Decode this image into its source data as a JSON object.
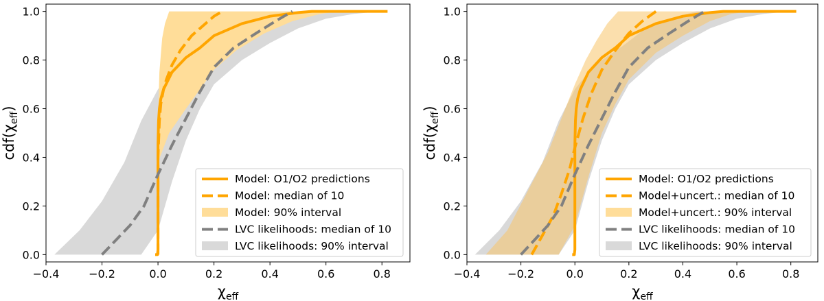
{
  "chart_data": [
    {
      "type": "line",
      "xlabel": "χ",
      "xlabel_sub": "eff",
      "ylabel": "cdf(χ",
      "ylabel_sub": "eff",
      "ylabel_close": ")",
      "xlim": [
        -0.4,
        0.9
      ],
      "ylim": [
        -0.03,
        1.03
      ],
      "xticks": [
        -0.4,
        -0.2,
        0.0,
        0.2,
        0.4,
        0.6,
        0.8
      ],
      "xtick_labels": [
        "−0.4",
        "−0.2",
        "0.0",
        "0.2",
        "0.4",
        "0.6",
        "0.8"
      ],
      "yticks": [
        0.0,
        0.2,
        0.4,
        0.6,
        0.8,
        1.0
      ],
      "ytick_labels": [
        "0.0",
        "0.2",
        "0.4",
        "0.6",
        "0.8",
        "1.0"
      ],
      "grid": false,
      "legend_position": "lower-right",
      "colors": {
        "model": "#ffa500",
        "model_band": "#ffdd99",
        "lvc": "#808080",
        "lvc_band": "#d9d9d9"
      },
      "bands": [
        {
          "name": "LVC likelihoods: 90% interval",
          "color": "#d9d9d9",
          "alpha": 1,
          "lower": [
            [
              -0.06,
              0.0
            ],
            [
              0.0,
              0.1
            ],
            [
              0.05,
              0.3
            ],
            [
              0.1,
              0.47
            ],
            [
              0.15,
              0.6
            ],
            [
              0.2,
              0.7
            ],
            [
              0.3,
              0.8
            ],
            [
              0.4,
              0.87
            ],
            [
              0.5,
              0.93
            ],
            [
              0.6,
              0.97
            ],
            [
              0.7,
              0.99
            ],
            [
              0.8,
              1.0
            ]
          ],
          "upper": [
            [
              -0.37,
              0.0
            ],
            [
              -0.28,
              0.1
            ],
            [
              -0.2,
              0.22
            ],
            [
              -0.12,
              0.38
            ],
            [
              -0.06,
              0.55
            ],
            [
              0.0,
              0.68
            ],
            [
              0.05,
              0.75
            ],
            [
              0.1,
              0.8
            ],
            [
              0.18,
              0.86
            ],
            [
              0.25,
              0.92
            ],
            [
              0.35,
              0.97
            ],
            [
              0.45,
              1.0
            ]
          ]
        },
        {
          "name": "Model: 90% interval",
          "color": "#ffdd99",
          "alpha": 1,
          "lower": [
            [
              0.0,
              0.0
            ],
            [
              0.0,
              0.38
            ],
            [
              0.04,
              0.5
            ],
            [
              0.1,
              0.6
            ],
            [
              0.15,
              0.68
            ],
            [
              0.2,
              0.76
            ],
            [
              0.28,
              0.84
            ],
            [
              0.38,
              0.91
            ],
            [
              0.48,
              0.96
            ],
            [
              0.58,
              0.99
            ],
            [
              0.65,
              1.0
            ]
          ],
          "upper": [
            [
              0.0,
              0.0
            ],
            [
              0.0,
              0.55
            ],
            [
              0.005,
              0.75
            ],
            [
              0.015,
              0.89
            ],
            [
              0.025,
              0.95
            ],
            [
              0.04,
              1.0
            ]
          ]
        }
      ],
      "series": [
        {
          "name": "Model: O1/O2 predictions",
          "color": "#ffa500",
          "style": "solid",
          "x": [
            -0.01,
            -0.002,
            0.0,
            0.0,
            0.002,
            0.005,
            0.01,
            0.02,
            0.05,
            0.1,
            0.15,
            0.2,
            0.3,
            0.4,
            0.5,
            0.55,
            0.6,
            0.82
          ],
          "y": [
            0.0,
            0.0,
            0.02,
            0.45,
            0.55,
            0.6,
            0.64,
            0.68,
            0.75,
            0.81,
            0.85,
            0.9,
            0.95,
            0.98,
            0.995,
            1.0,
            1.0,
            1.0
          ]
        },
        {
          "name": "Model: median of 10",
          "color": "#ffa500",
          "style": "dashed",
          "x": [
            0.0,
            0.0,
            0.005,
            0.01,
            0.02,
            0.03,
            0.05,
            0.08,
            0.12,
            0.16,
            0.2,
            0.23
          ],
          "y": [
            0.0,
            0.4,
            0.55,
            0.62,
            0.68,
            0.72,
            0.78,
            0.84,
            0.9,
            0.94,
            0.98,
            1.0
          ]
        },
        {
          "name": "LVC likelihoods: median of 10",
          "color": "#808080",
          "style": "dashed",
          "x": [
            -0.2,
            -0.15,
            -0.1,
            -0.05,
            0.0,
            0.05,
            0.1,
            0.15,
            0.2,
            0.27,
            0.35,
            0.42,
            0.48
          ],
          "y": [
            0.0,
            0.06,
            0.12,
            0.2,
            0.33,
            0.45,
            0.56,
            0.67,
            0.77,
            0.85,
            0.91,
            0.96,
            1.0
          ]
        }
      ],
      "legend": [
        {
          "label": "Model: O1/O2 predictions",
          "kind": "solid",
          "color": "#ffa500"
        },
        {
          "label": "Model: median of 10",
          "kind": "dashed",
          "color": "#ffa500"
        },
        {
          "label": "Model: 90% interval",
          "kind": "patch",
          "color": "#ffdd99"
        },
        {
          "label": "LVC likelihoods: median of 10",
          "kind": "dashed",
          "color": "#808080"
        },
        {
          "label": "LVC likelihoods: 90% interval",
          "kind": "patch",
          "color": "#d9d9d9"
        }
      ]
    },
    {
      "type": "line",
      "xlabel": "χ",
      "xlabel_sub": "eff",
      "ylabel": "cdf(χ",
      "ylabel_sub": "eff",
      "ylabel_close": ")",
      "xlim": [
        -0.4,
        0.9
      ],
      "ylim": [
        -0.03,
        1.03
      ],
      "xticks": [
        -0.4,
        -0.2,
        0.0,
        0.2,
        0.4,
        0.6,
        0.8
      ],
      "xtick_labels": [
        "−0.4",
        "−0.2",
        "0.0",
        "0.2",
        "0.4",
        "0.6",
        "0.8"
      ],
      "yticks": [
        0.0,
        0.2,
        0.4,
        0.6,
        0.8,
        1.0
      ],
      "ytick_labels": [
        "0.0",
        "0.2",
        "0.4",
        "0.6",
        "0.8",
        "1.0"
      ],
      "grid": false,
      "legend_position": "lower-right",
      "colors": {
        "model": "#ffa500",
        "model_band": "#ffdd99",
        "lvc": "#808080",
        "lvc_band": "#d9d9d9"
      },
      "bands": [
        {
          "name": "LVC likelihoods: 90% interval",
          "color": "#d9d9d9",
          "alpha": 1,
          "lower": [
            [
              -0.06,
              0.0
            ],
            [
              0.0,
              0.1
            ],
            [
              0.05,
              0.3
            ],
            [
              0.1,
              0.47
            ],
            [
              0.15,
              0.6
            ],
            [
              0.2,
              0.7
            ],
            [
              0.3,
              0.8
            ],
            [
              0.4,
              0.87
            ],
            [
              0.5,
              0.93
            ],
            [
              0.6,
              0.97
            ],
            [
              0.7,
              0.99
            ],
            [
              0.8,
              1.0
            ]
          ],
          "upper": [
            [
              -0.37,
              0.0
            ],
            [
              -0.28,
              0.1
            ],
            [
              -0.2,
              0.22
            ],
            [
              -0.12,
              0.38
            ],
            [
              -0.06,
              0.55
            ],
            [
              0.0,
              0.68
            ],
            [
              0.05,
              0.75
            ],
            [
              0.1,
              0.8
            ],
            [
              0.18,
              0.86
            ],
            [
              0.25,
              0.92
            ],
            [
              0.35,
              0.97
            ],
            [
              0.45,
              1.0
            ]
          ]
        },
        {
          "name": "Model+uncert.: 90% interval",
          "color": "#f7c46a",
          "alpha": 0.55,
          "lower": [
            [
              -0.06,
              0.0
            ],
            [
              0.0,
              0.12
            ],
            [
              0.05,
              0.32
            ],
            [
              0.1,
              0.5
            ],
            [
              0.15,
              0.62
            ],
            [
              0.2,
              0.72
            ],
            [
              0.3,
              0.83
            ],
            [
              0.4,
              0.9
            ],
            [
              0.5,
              0.96
            ],
            [
              0.58,
              0.99
            ],
            [
              0.65,
              1.0
            ]
          ],
          "upper": [
            [
              -0.33,
              0.0
            ],
            [
              -0.25,
              0.1
            ],
            [
              -0.18,
              0.25
            ],
            [
              -0.1,
              0.42
            ],
            [
              -0.05,
              0.56
            ],
            [
              0.0,
              0.7
            ],
            [
              0.04,
              0.8
            ],
            [
              0.08,
              0.88
            ],
            [
              0.12,
              0.95
            ],
            [
              0.16,
              1.0
            ]
          ]
        }
      ],
      "series": [
        {
          "name": "Model: O1/O2 predictions",
          "color": "#ffa500",
          "style": "solid",
          "x": [
            -0.01,
            -0.002,
            0.0,
            0.0,
            0.002,
            0.005,
            0.01,
            0.02,
            0.05,
            0.1,
            0.15,
            0.2,
            0.3,
            0.4,
            0.5,
            0.55,
            0.6,
            0.82
          ],
          "y": [
            0.0,
            0.0,
            0.02,
            0.45,
            0.55,
            0.6,
            0.64,
            0.68,
            0.75,
            0.81,
            0.85,
            0.9,
            0.95,
            0.98,
            0.995,
            1.0,
            1.0,
            1.0
          ]
        },
        {
          "name": "Model+uncert.: median of 10",
          "color": "#ffa500",
          "style": "dashed",
          "x": [
            -0.16,
            -0.12,
            -0.08,
            -0.05,
            -0.02,
            0.0,
            0.03,
            0.06,
            0.1,
            0.15,
            0.2,
            0.25,
            0.3
          ],
          "y": [
            0.0,
            0.08,
            0.16,
            0.25,
            0.35,
            0.44,
            0.56,
            0.66,
            0.76,
            0.84,
            0.91,
            0.96,
            1.0
          ]
        },
        {
          "name": "LVC likelihoods: median of 10",
          "color": "#808080",
          "style": "dashed",
          "x": [
            -0.2,
            -0.15,
            -0.1,
            -0.05,
            0.0,
            0.05,
            0.1,
            0.15,
            0.2,
            0.27,
            0.35,
            0.42,
            0.48
          ],
          "y": [
            0.0,
            0.06,
            0.12,
            0.2,
            0.33,
            0.45,
            0.56,
            0.67,
            0.77,
            0.85,
            0.91,
            0.96,
            1.0
          ]
        }
      ],
      "legend": [
        {
          "label": "Model: O1/O2 predictions",
          "kind": "solid",
          "color": "#ffa500"
        },
        {
          "label": "Model+uncert.: median of 10",
          "kind": "dashed",
          "color": "#ffa500"
        },
        {
          "label": "Model+uncert.: 90% interval",
          "kind": "patch",
          "color": "#ffdd99"
        },
        {
          "label": "LVC likelihoods: median of 10",
          "kind": "dashed",
          "color": "#808080"
        },
        {
          "label": "LVC likelihoods: 90% interval",
          "kind": "patch",
          "color": "#d9d9d9"
        }
      ]
    }
  ]
}
